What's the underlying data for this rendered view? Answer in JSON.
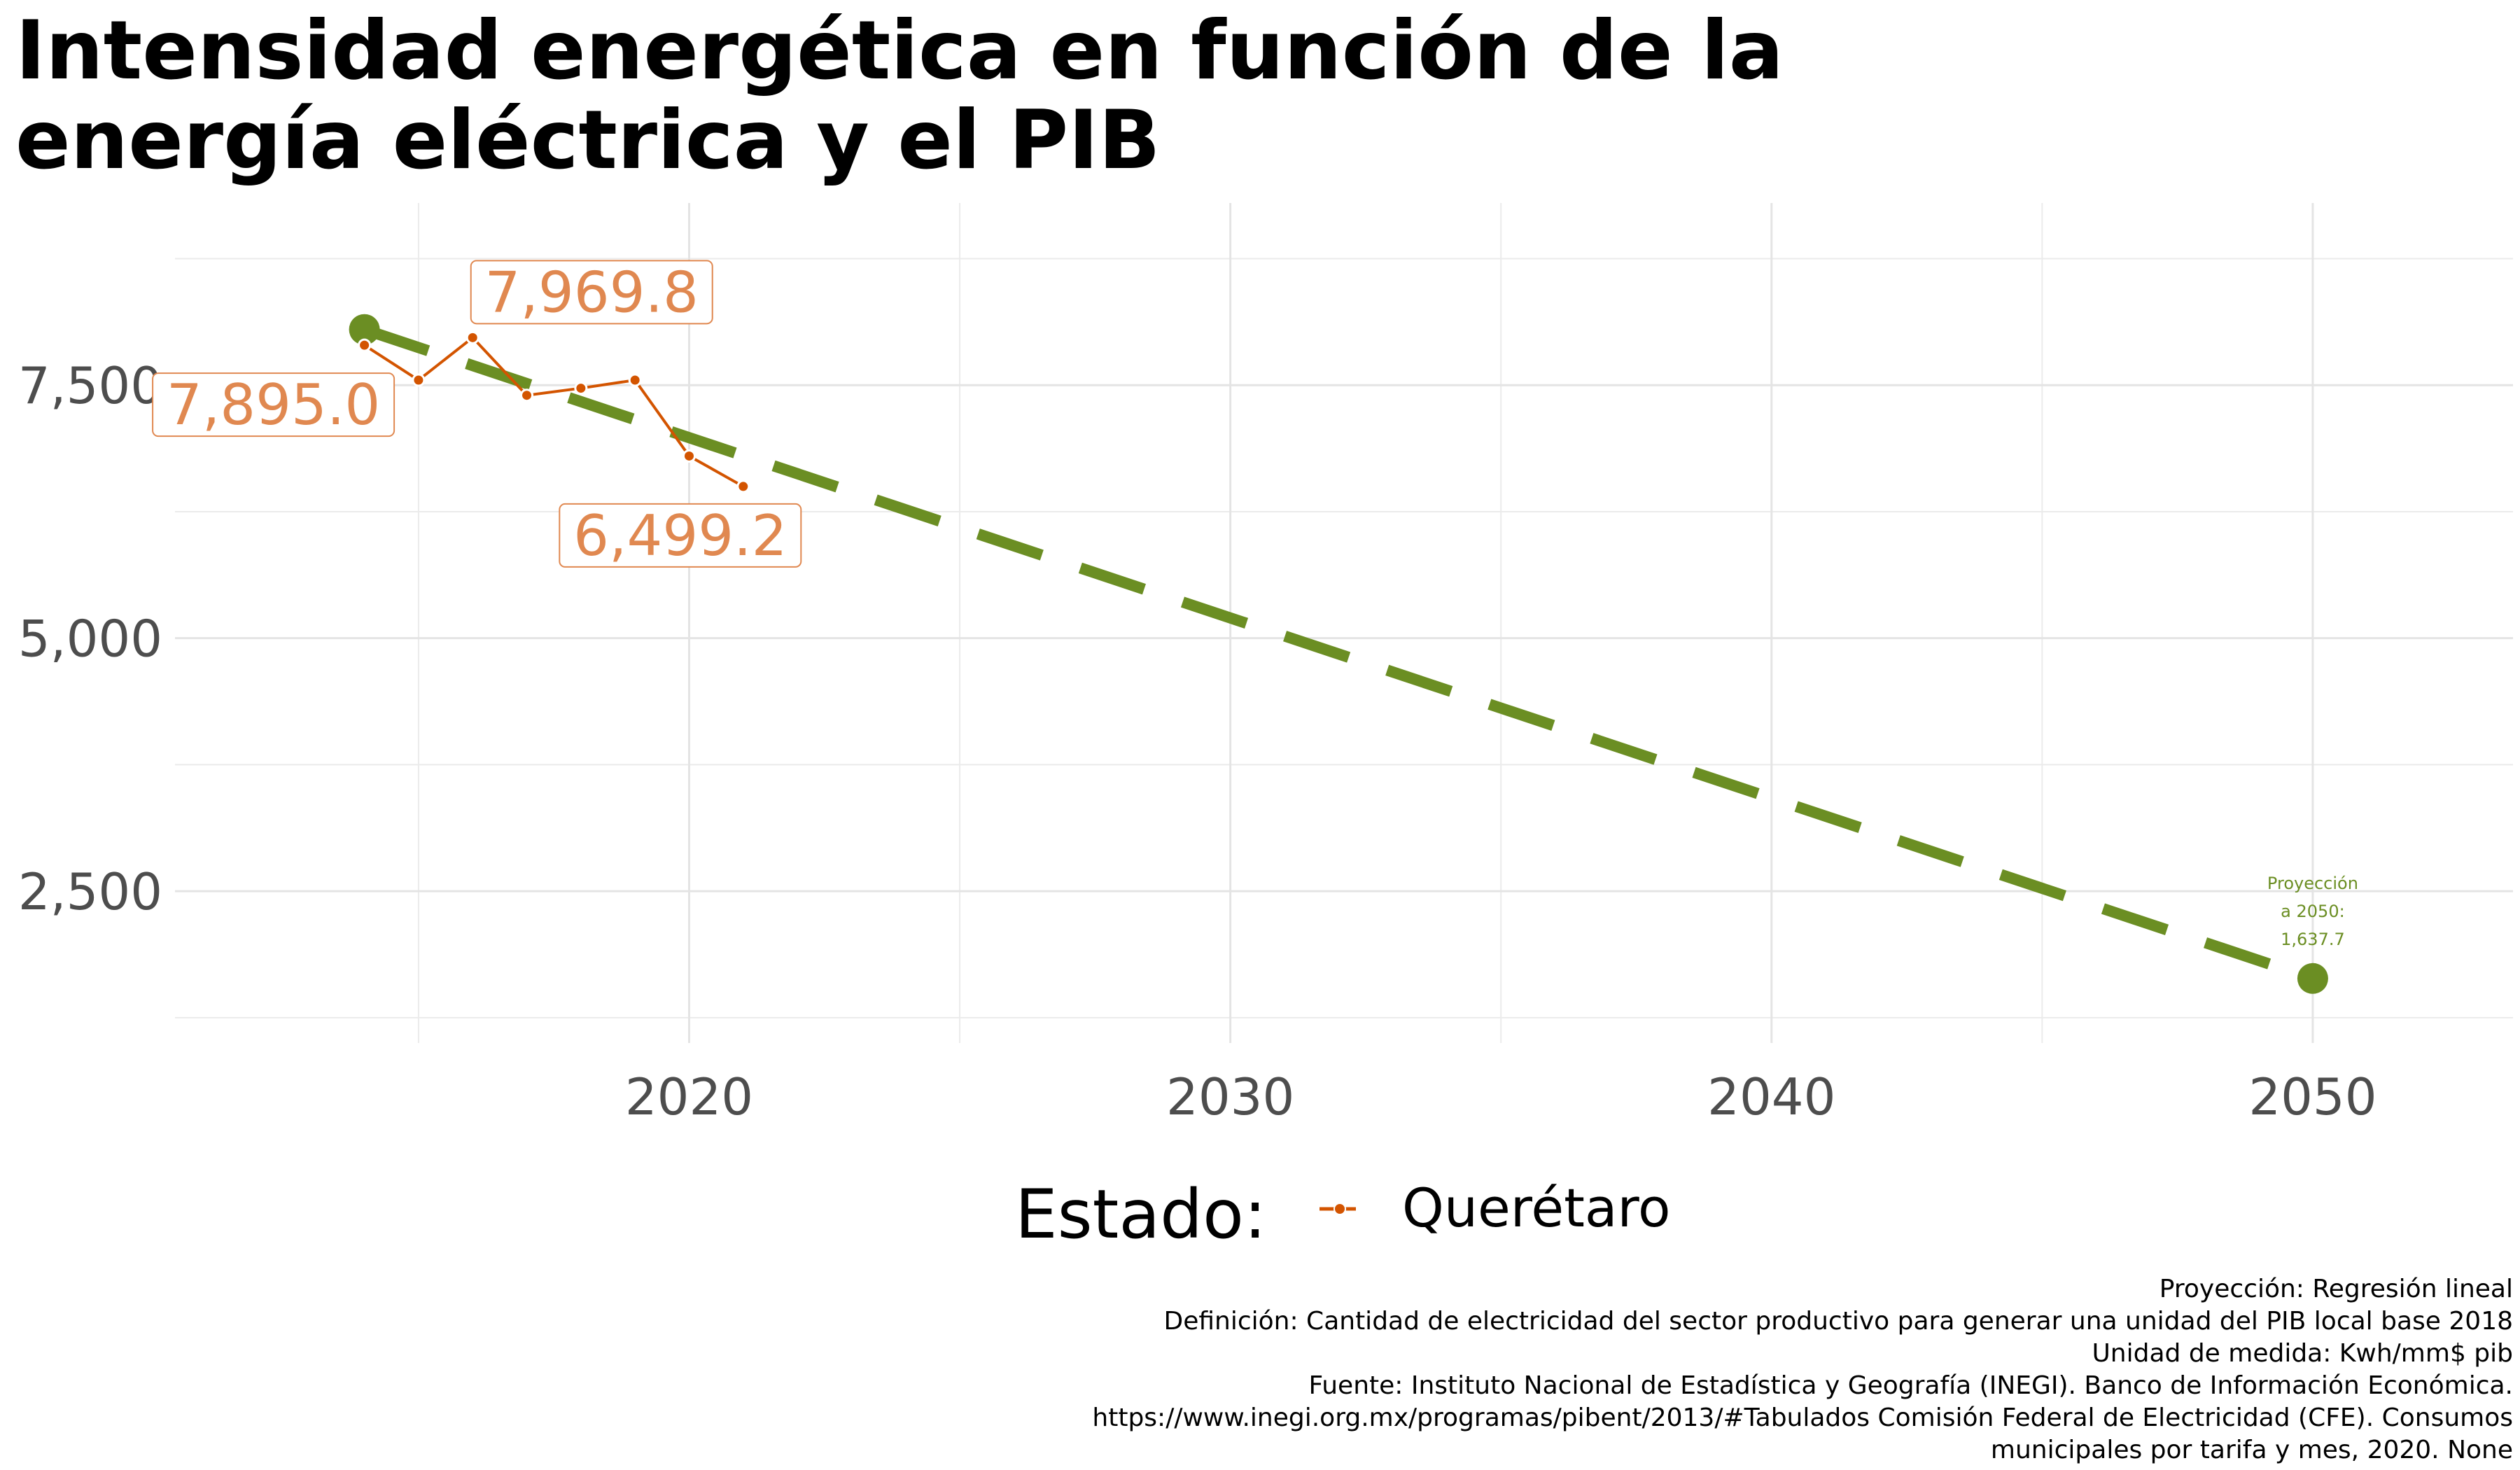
{
  "title_lines": [
    "Intensidad energética en función de la",
    "energía eléctrica y el PIB"
  ],
  "chart_data": {
    "type": "line",
    "title": "Intensidad energética en función de la energía eléctrica y el PIB",
    "xlim": [
      2010.5,
      2053.7
    ],
    "ylim": [
      1000,
      9300
    ],
    "x_ticks": [
      2020,
      2030,
      2040,
      2050
    ],
    "x_tick_labels": [
      "2020",
      "2030",
      "2040",
      "2050"
    ],
    "y_ticks": [
      2500,
      5000,
      7500
    ],
    "y_tick_labels": [
      "2,500",
      "5,000",
      "7,500"
    ],
    "grid": true,
    "series": [
      {
        "name": "Querétaro",
        "color": "#d35400",
        "x": [
          2014,
          2015,
          2016,
          2017,
          2018,
          2019,
          2020,
          2021
        ],
        "y": [
          7895.0,
          7550.0,
          7969.8,
          7400.0,
          7470.0,
          7550.0,
          6800.0,
          6499.2
        ]
      }
    ],
    "projection": {
      "color": "#6b8e23",
      "x": [
        2014,
        2050
      ],
      "y": [
        8050.0,
        1637.7
      ],
      "label_lines": [
        "Proyección",
        "a 2050:",
        "1,637.7"
      ]
    },
    "labels": [
      {
        "x": 2014,
        "y": 7895.0,
        "text": "7,895.0"
      },
      {
        "x": 2016,
        "y": 7969.8,
        "text": "7,969.8"
      },
      {
        "x": 2021,
        "y": 6499.2,
        "text": "6,499.2"
      }
    ],
    "legend": {
      "title": "Estado:",
      "position": "bottom",
      "entries": [
        "Querétaro"
      ]
    }
  },
  "caption_lines": [
    "Proyección: Regresión lineal",
    "Definición: Cantidad de electricidad del sector productivo para generar una unidad del PIB local base 2018",
    "Unidad de medida: Kwh/mm$ pib",
    "Fuente: Instituto Nacional de Estadística y Geografía (INEGI). Banco de Información Económica.",
    "https://www.inegi.org.mx/programas/pibent/2013/#Tabulados Comisión Federal de Electricidad (CFE). Consumos",
    "municipales por tarifa y mes, 2020. None"
  ]
}
